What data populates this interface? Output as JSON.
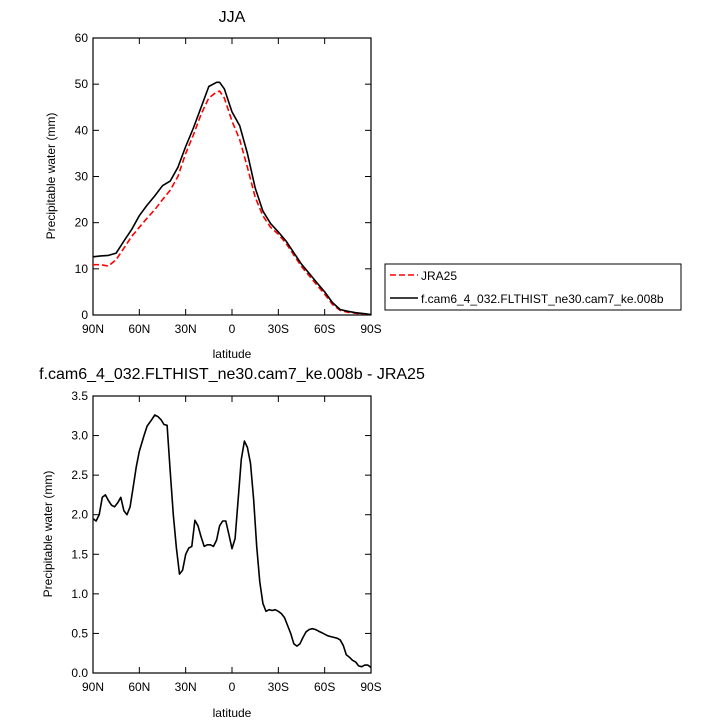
{
  "chart_data": [
    {
      "type": "line",
      "title": "JJA",
      "xlabel": "latitude",
      "ylabel": "Precipitable water (mm)",
      "xlim": [
        90,
        -90
      ],
      "ylim": [
        0,
        60
      ],
      "xticks": [
        {
          "value": 90,
          "label": "90N"
        },
        {
          "value": 60,
          "label": "60N"
        },
        {
          "value": 30,
          "label": "30N"
        },
        {
          "value": 0,
          "label": "0"
        },
        {
          "value": -30,
          "label": "30S"
        },
        {
          "value": -60,
          "label": "60S"
        },
        {
          "value": -90,
          "label": "90S"
        }
      ],
      "yticks": [
        {
          "value": 0,
          "label": "0"
        },
        {
          "value": 10,
          "label": "10"
        },
        {
          "value": 20,
          "label": "20"
        },
        {
          "value": 30,
          "label": "30"
        },
        {
          "value": 40,
          "label": "40"
        },
        {
          "value": 50,
          "label": "50"
        },
        {
          "value": 60,
          "label": "60"
        }
      ],
      "legend": "outside-right",
      "series": [
        {
          "name": "JRA25",
          "color": "#ff0000",
          "style": "dashed",
          "x": [
            90,
            85,
            80,
            75,
            70,
            65,
            60,
            55,
            50,
            45,
            40,
            35,
            30,
            25,
            20,
            15,
            10,
            8,
            5,
            0,
            -5,
            -10,
            -15,
            -20,
            -25,
            -30,
            -35,
            -40,
            -45,
            -50,
            -55,
            -60,
            -65,
            -70,
            -75,
            -80,
            -85,
            -90
          ],
          "y": [
            10.9,
            10.9,
            10.6,
            12.0,
            14.5,
            17.0,
            19.0,
            21.0,
            22.8,
            25.0,
            27.0,
            30.0,
            35.0,
            39.0,
            43.5,
            47.0,
            48.3,
            48.5,
            47.0,
            42.0,
            38.0,
            32.0,
            25.5,
            21.5,
            19.0,
            17.5,
            15.5,
            13.0,
            10.5,
            8.5,
            6.5,
            4.5,
            2.3,
            1.0,
            0.6,
            0.4,
            0.2,
            0.1
          ]
        },
        {
          "name": "f.cam6_4_032.FLTHIST_ne30.cam7_ke.008b",
          "color": "#000000",
          "style": "solid",
          "x": [
            90,
            85,
            80,
            75,
            70,
            65,
            60,
            55,
            50,
            45,
            40,
            35,
            30,
            25,
            20,
            15,
            10,
            8,
            5,
            0,
            -5,
            -10,
            -15,
            -20,
            -25,
            -30,
            -35,
            -40,
            -45,
            -50,
            -55,
            -60,
            -65,
            -70,
            -75,
            -80,
            -85,
            -90
          ],
          "y": [
            12.6,
            12.8,
            12.9,
            13.4,
            16.0,
            18.5,
            21.5,
            23.8,
            25.8,
            28.0,
            29.0,
            32.0,
            36.5,
            40.5,
            45.0,
            49.5,
            50.4,
            50.4,
            49.0,
            44.0,
            41.0,
            35.0,
            27.5,
            22.5,
            19.8,
            18.0,
            16.0,
            13.5,
            11.0,
            9.0,
            7.0,
            5.0,
            2.7,
            1.2,
            0.8,
            0.5,
            0.3,
            0.1
          ]
        }
      ]
    },
    {
      "type": "line",
      "title": "f.cam6_4_032.FLTHIST_ne30.cam7_ke.008b - JRA25",
      "xlabel": "latitude",
      "ylabel": "Precipitable water (mm)",
      "xlim": [
        90,
        -90
      ],
      "ylim": [
        0,
        3.5
      ],
      "xticks": [
        {
          "value": 90,
          "label": "90N"
        },
        {
          "value": 60,
          "label": "60N"
        },
        {
          "value": 30,
          "label": "30N"
        },
        {
          "value": 0,
          "label": "0"
        },
        {
          "value": -30,
          "label": "30S"
        },
        {
          "value": -60,
          "label": "60S"
        },
        {
          "value": -90,
          "label": "90S"
        }
      ],
      "yticks": [
        {
          "value": 0,
          "label": "0.0"
        },
        {
          "value": 0.5,
          "label": "0.5"
        },
        {
          "value": 1.0,
          "label": "1.0"
        },
        {
          "value": 1.5,
          "label": "1.5"
        },
        {
          "value": 2.0,
          "label": "2.0"
        },
        {
          "value": 2.5,
          "label": "2.5"
        },
        {
          "value": 3.0,
          "label": "3.0"
        },
        {
          "value": 3.5,
          "label": "3.5"
        }
      ],
      "series": [
        {
          "color": "#000000",
          "style": "solid",
          "x": [
            90,
            88,
            86,
            84,
            82,
            80,
            78,
            76,
            74,
            72,
            70,
            68,
            66,
            64,
            62,
            60,
            57,
            55,
            52,
            50,
            48,
            46,
            44,
            42,
            40,
            38,
            36,
            34,
            32,
            30,
            28,
            26,
            24,
            22,
            20,
            18,
            16,
            14,
            12,
            10,
            8,
            6,
            4,
            2,
            0,
            -2,
            -4,
            -6,
            -8,
            -10,
            -12,
            -14,
            -16,
            -18,
            -20,
            -22,
            -24,
            -26,
            -28,
            -30,
            -32,
            -34,
            -36,
            -38,
            -40,
            -42,
            -44,
            -46,
            -48,
            -50,
            -52,
            -54,
            -56,
            -58,
            -60,
            -62,
            -64,
            -66,
            -68,
            -70,
            -72,
            -74,
            -76,
            -78,
            -80,
            -82,
            -84,
            -86,
            -88,
            -90
          ],
          "y": [
            1.95,
            1.92,
            2.0,
            2.22,
            2.25,
            2.18,
            2.12,
            2.1,
            2.15,
            2.22,
            2.05,
            2.0,
            2.1,
            2.35,
            2.6,
            2.8,
            3.0,
            3.12,
            3.2,
            3.26,
            3.24,
            3.2,
            3.14,
            3.13,
            2.55,
            2.0,
            1.58,
            1.25,
            1.3,
            1.5,
            1.58,
            1.6,
            1.93,
            1.86,
            1.72,
            1.6,
            1.62,
            1.62,
            1.6,
            1.68,
            1.86,
            1.92,
            1.92,
            1.75,
            1.57,
            1.7,
            2.2,
            2.7,
            2.93,
            2.85,
            2.65,
            2.2,
            1.6,
            1.15,
            0.88,
            0.78,
            0.8,
            0.79,
            0.8,
            0.78,
            0.75,
            0.7,
            0.6,
            0.5,
            0.37,
            0.34,
            0.37,
            0.45,
            0.52,
            0.55,
            0.56,
            0.55,
            0.53,
            0.51,
            0.49,
            0.47,
            0.46,
            0.45,
            0.44,
            0.42,
            0.35,
            0.23,
            0.2,
            0.16,
            0.14,
            0.09,
            0.08,
            0.1,
            0.1,
            0.07
          ]
        }
      ]
    }
  ]
}
